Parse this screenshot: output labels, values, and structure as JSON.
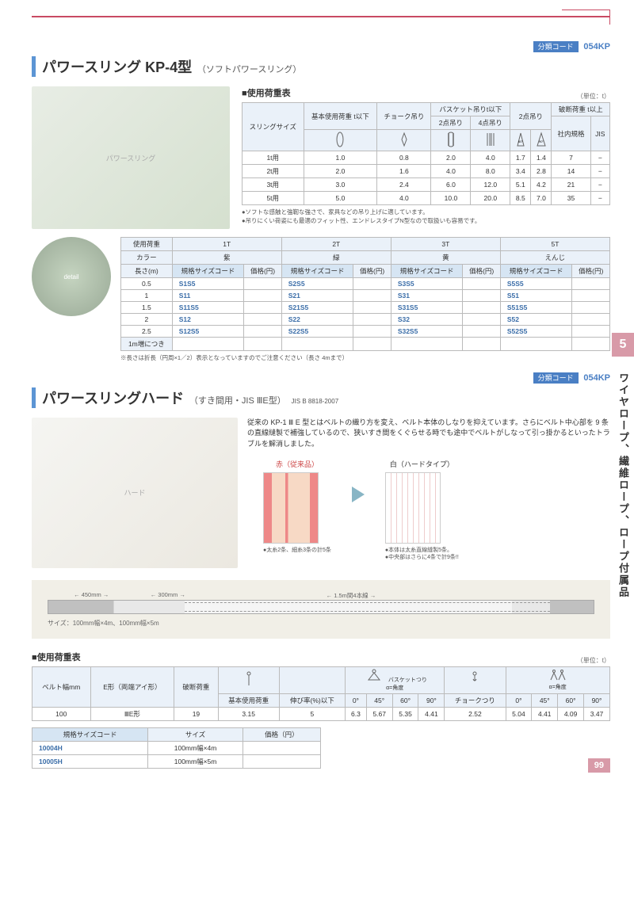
{
  "code": {
    "label": "分類コード",
    "value": "054KP"
  },
  "sideTab": {
    "num": "5",
    "text": "ワイヤロープ、繊維ロープ、ロープ付属品"
  },
  "pageNum": "99",
  "product1": {
    "title": "パワースリング KP-4型",
    "subtitle": "（ソフトパワースリング）",
    "loadLabel": "■使用荷重表",
    "unit": "（単位：t）",
    "loadHeaders": {
      "sling": "スリングサイズ",
      "basic": "基本使用荷重 t以下",
      "choke": "チョーク吊り",
      "basket": "バスケット吊りt以下",
      "basket2": "2点吊り",
      "basket4": "4点吊り",
      "two": "2点吊り",
      "break": "破断荷重 t以上",
      "internal": "社内規格",
      "jis": "JIS"
    },
    "loadRows": [
      {
        "size": "1t用",
        "v": [
          "1.0",
          "0.8",
          "2.0",
          "4.0",
          "1.7",
          "1.4",
          "7",
          "−"
        ]
      },
      {
        "size": "2t用",
        "v": [
          "2.0",
          "1.6",
          "4.0",
          "8.0",
          "3.4",
          "2.8",
          "14",
          "−"
        ]
      },
      {
        "size": "3t用",
        "v": [
          "3.0",
          "2.4",
          "6.0",
          "12.0",
          "5.1",
          "4.2",
          "21",
          "−"
        ]
      },
      {
        "size": "5t用",
        "v": [
          "5.0",
          "4.0",
          "10.0",
          "20.0",
          "8.5",
          "7.0",
          "35",
          "−"
        ]
      }
    ],
    "notes": [
      "●ソフトな感触と強靭な強さで、家具などの吊り上げに適しています。",
      "●吊りにくい荷姿にも最適のフィット性、エンドレスタイプN型なので取扱いも容易です。"
    ],
    "specHeaders": {
      "load": "使用荷重",
      "color": "カラー",
      "length": "長さ(m)",
      "code": "規格サイズコード",
      "price": "価格(円)",
      "t1": "1T",
      "t2": "2T",
      "t3": "3T",
      "t5": "5T",
      "c1": "紫",
      "c2": "緑",
      "c3": "黄",
      "c5": "えんじ",
      "inc": "1m増につき"
    },
    "specRows": [
      {
        "len": "0.5",
        "codes": [
          "S1S5",
          "S2S5",
          "S3S5",
          "S5S5"
        ]
      },
      {
        "len": "1",
        "codes": [
          "S11",
          "S21",
          "S31",
          "S51"
        ]
      },
      {
        "len": "1.5",
        "codes": [
          "S11S5",
          "S21S5",
          "S31S5",
          "S51S5"
        ]
      },
      {
        "len": "2",
        "codes": [
          "S12",
          "S22",
          "S32",
          "S52"
        ]
      },
      {
        "len": "2.5",
        "codes": [
          "S12S5",
          "S22S5",
          "S32S5",
          "S52S5"
        ]
      }
    ],
    "specNote": "※長さは折長（円周×1／2）表示となっていますのでご注意ください（長さ 4mまで）"
  },
  "product2": {
    "title": "パワースリングハード",
    "subtitle": "（すき間用・JIS ⅢE型）",
    "std": "JIS B 8818-2007",
    "desc": "従来の KP-1 Ⅲ E 型とはベルトの織り方を変え、ベルト本体のしなりを抑えています。さらにベルト中心部を 9 条の直線縫製で補強しているので、狭いすき間をくぐらせる時でも途中でベルトがしなって引っ掛かるといったトラブルを解消しました。",
    "compare": {
      "red": {
        "label": "赤（従来品）",
        "note": "●太糸2条、細糸3条の計5条"
      },
      "white": {
        "label": "白（ハードタイプ）",
        "note": "●本体は太糸直線縫製5条。\n●中央部はさらに4条で計9条!!"
      }
    },
    "diagram": {
      "dims": [
        "450mm",
        "300mm",
        "1.5m間4本線"
      ],
      "caption": "サイズ：100mm幅×4m、100mm幅×5m"
    },
    "loadLabel": "■使用荷重表",
    "unit": "（単位：t）",
    "loadHeaders": {
      "belt": "ベルト幅mm",
      "type": "E形（両端アイ形）",
      "break": "破断荷重",
      "basic": "基本使用荷重",
      "elong": "伸び率(%)以下",
      "basket": "バスケットつり",
      "angle": "α=角度",
      "choke": "チョークつり",
      "a0": "0°",
      "a45": "45°",
      "a60": "60°",
      "a90": "90°"
    },
    "loadRow": {
      "width": "100",
      "type": "ⅢE形",
      "break": "19",
      "basic": "3.15",
      "elong": "5",
      "b": [
        "6.3",
        "5.67",
        "5.35",
        "4.41"
      ],
      "choke": "2.52",
      "b2": [
        "5.04",
        "4.41",
        "4.09",
        "3.47"
      ]
    },
    "sizeHeaders": {
      "code": "規格サイズコード",
      "size": "サイズ",
      "price": "価格（円）"
    },
    "sizeRows": [
      {
        "code": "10004H",
        "size": "100mm幅×4m"
      },
      {
        "code": "10005H",
        "size": "100mm幅×5m"
      }
    ]
  }
}
